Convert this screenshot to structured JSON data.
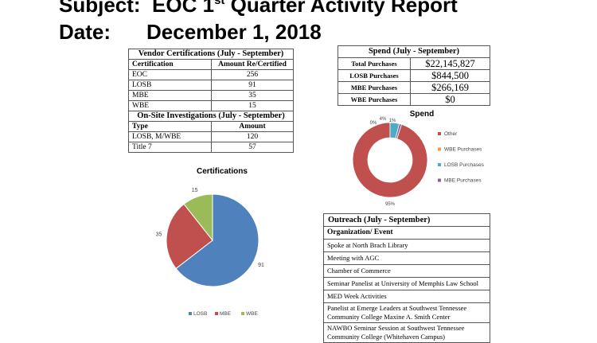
{
  "header": {
    "subject_label": "Subject:",
    "subject_pre": "EOC 1",
    "subject_sup": "st",
    "subject_post": " Quarter Activity Report",
    "date_label": "Date:",
    "date_value": "December 1, 2018"
  },
  "vendor": {
    "title": "Vendor Certifications (July - September)",
    "col1": "Certification",
    "col2": "Amount Re/Certified",
    "rows": [
      {
        "name": "EOC",
        "value": "256"
      },
      {
        "name": "LOSB",
        "value": "91"
      },
      {
        "name": "MBE",
        "value": "35"
      },
      {
        "name": "WBE",
        "value": "15"
      }
    ],
    "inv_title": "On-Site Investigations (July - September)",
    "inv_col1": "Type",
    "inv_col2": "Amount",
    "inv_rows": [
      {
        "name": "LOSB, M/WBE",
        "value": "120"
      },
      {
        "name": "Title 7",
        "value": "57"
      }
    ]
  },
  "spend": {
    "title": "Spend (July - September)",
    "rows": [
      {
        "label": "Total Purchases",
        "value": "$22,145,827"
      },
      {
        "label": "LOSB Purchases",
        "value": "$844,500"
      },
      {
        "label": "MBE Purchases",
        "value": "$266,169"
      },
      {
        "label": "WBE Purchases",
        "value": "$0"
      }
    ]
  },
  "outreach": {
    "title": "Outreach (July - September)",
    "col": "Organization/ Event",
    "rows": [
      "Spoke at North Brach Library",
      "Meeting with AGC",
      "Chamber of Commerce",
      "Seminar Panelist at University of Memphis Law School",
      "MED Week Activities",
      "Panelist at Emerge Leaders at Southwest Tennessee Community College Maxine A. Smith Center",
      "NAWBO Seminar Session at Southwest Tennessee Community College (Whitehaven Campus)"
    ]
  },
  "colors": {
    "blue": "#4f81bd",
    "red": "#c0504d",
    "green": "#9bbb59",
    "orange": "#f79646",
    "teal": "#4bacc6",
    "purple": "#8064a2"
  },
  "chart_data": [
    {
      "type": "pie",
      "title": "Spend",
      "donut": true,
      "slices": [
        {
          "name": "Other",
          "value": 95,
          "label": "95%",
          "color": "#c0504d"
        },
        {
          "name": "WBE Purchases",
          "value": 0,
          "label": "0%",
          "color": "#f79646"
        },
        {
          "name": "LOSB Purchases",
          "value": 4,
          "label": "4%",
          "color": "#4bacc6"
        },
        {
          "name": "MBE Purchases",
          "value": 1,
          "label": "1%",
          "color": "#8064a2"
        }
      ],
      "legend": "right"
    },
    {
      "type": "pie",
      "title": "Certifications",
      "slices": [
        {
          "name": "LOSB",
          "value": 91,
          "label": "91",
          "color": "#4f81bd"
        },
        {
          "name": "MBE",
          "value": 35,
          "label": "35",
          "color": "#c0504d"
        },
        {
          "name": "WBE",
          "value": 15,
          "label": "15",
          "color": "#9bbb59"
        }
      ],
      "legend": "bottom"
    }
  ]
}
